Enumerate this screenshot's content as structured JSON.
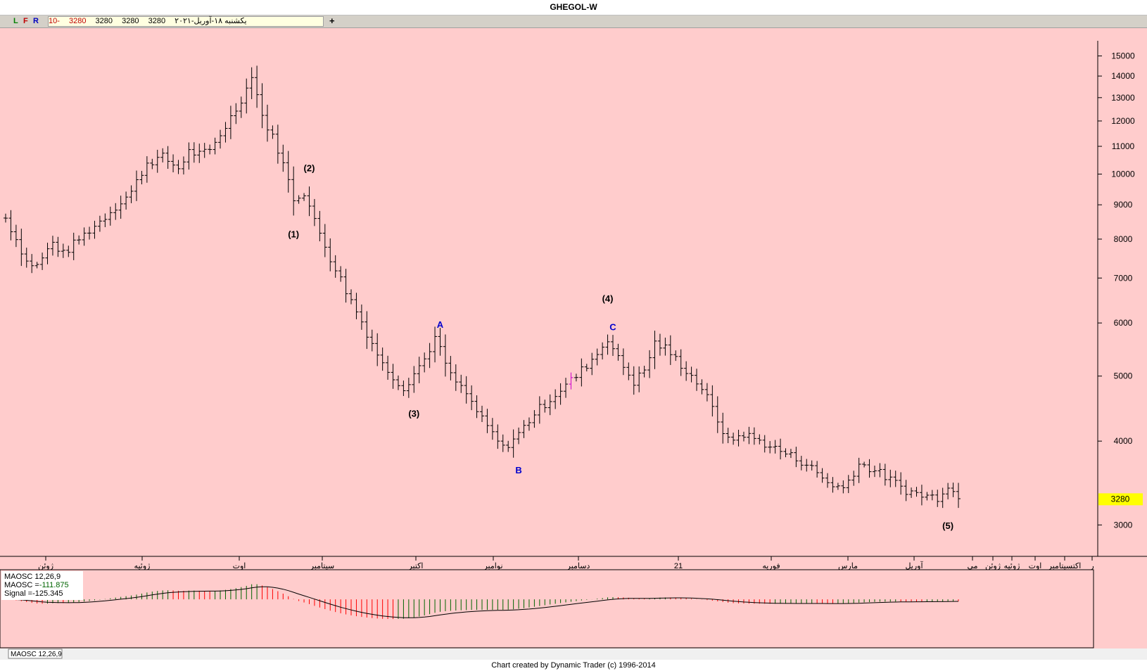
{
  "window": {
    "title": "GHEGOL-W"
  },
  "toolbar": {
    "letters": [
      "L",
      "F",
      "R"
    ],
    "letter_colors": [
      "#008000",
      "#c00000",
      "#0000c0"
    ],
    "date": "یکشنبه ۱۸-آوریل-۲۰۲۱",
    "open": "3280",
    "high": "3280",
    "low": "3280",
    "close": "3280",
    "change": "-10",
    "plus": "+"
  },
  "colors": {
    "background": "#ffcccc",
    "bar": "#000000",
    "histogram_up": "#006400",
    "histogram_down": "#ff0000",
    "last_price_tag": "#ffff00",
    "wave_label": "#000000",
    "abc_label": "#0000cc"
  },
  "chart_data": [
    {
      "type": "bar",
      "title": "",
      "scale": "log",
      "ylim": [
        2700,
        15800
      ],
      "y_ticks": [
        3000,
        4000,
        5000,
        6000,
        7000,
        8000,
        9000,
        10000,
        11000,
        12000,
        13000,
        14000,
        15000
      ],
      "last_price": "3280",
      "x_labels": [
        "ژوئن",
        "ژوئیه",
        "اوت",
        "سپتامبر",
        "اکتبر",
        "نوامبر",
        "دسامبر",
        "21",
        "فوریه",
        "مارس",
        "آوریل",
        "می",
        "ژوئن",
        "ژوئیه",
        "اوت",
        "اکتسپتامبر",
        "ر"
      ],
      "waypoints": [
        [
          0,
          8600
        ],
        [
          4,
          7400
        ],
        [
          6,
          7300
        ],
        [
          9,
          7900
        ],
        [
          11,
          7600
        ],
        [
          14,
          8000
        ],
        [
          18,
          8500
        ],
        [
          24,
          9400
        ],
        [
          27,
          10400
        ],
        [
          30,
          10600
        ],
        [
          33,
          10200
        ],
        [
          35,
          10800
        ],
        [
          37,
          10700
        ],
        [
          39,
          10800
        ],
        [
          42,
          11800
        ],
        [
          44,
          12500
        ],
        [
          46,
          13400
        ],
        [
          47,
          14100
        ],
        [
          49,
          12200
        ],
        [
          52,
          10900
        ],
        [
          55,
          9200
        ],
        [
          57,
          9400
        ],
        [
          59,
          8500
        ],
        [
          62,
          7500
        ],
        [
          65,
          6700
        ],
        [
          69,
          5800
        ],
        [
          72,
          5200
        ],
        [
          76,
          4800
        ],
        [
          80,
          5300
        ],
        [
          82,
          5700
        ],
        [
          85,
          5000
        ],
        [
          88,
          4700
        ],
        [
          91,
          4300
        ],
        [
          95,
          3900
        ],
        [
          98,
          4100
        ],
        [
          101,
          4400
        ],
        [
          105,
          4700
        ],
        [
          109,
          5000
        ],
        [
          113,
          5400
        ],
        [
          115,
          5700
        ],
        [
          117,
          5300
        ],
        [
          120,
          4900
        ],
        [
          122,
          5100
        ],
        [
          124,
          5600
        ],
        [
          126,
          5500
        ],
        [
          128,
          5300
        ],
        [
          130,
          5100
        ],
        [
          133,
          4800
        ],
        [
          136,
          4300
        ],
        [
          138,
          4000
        ],
        [
          141,
          4100
        ],
        [
          144,
          4000
        ],
        [
          147,
          3900
        ],
        [
          150,
          3800
        ],
        [
          153,
          3700
        ],
        [
          157,
          3470
        ],
        [
          160,
          3400
        ],
        [
          163,
          3700
        ],
        [
          166,
          3620
        ],
        [
          169,
          3500
        ],
        [
          172,
          3380
        ],
        [
          175,
          3320
        ],
        [
          178,
          3300
        ],
        [
          180,
          3450
        ],
        [
          182,
          3280
        ]
      ],
      "magenta_bar_index": 108,
      "annotations": [
        {
          "text": "(1)",
          "index": 55,
          "price": 8050,
          "color": "#000000"
        },
        {
          "text": "(2)",
          "index": 58,
          "price": 10100,
          "color": "#000000"
        },
        {
          "text": "(3)",
          "index": 78,
          "price": 4350,
          "color": "#000000"
        },
        {
          "text": "(4)",
          "index": 115,
          "price": 6450,
          "color": "#000000"
        },
        {
          "text": "(5)",
          "index": 180,
          "price": 2960,
          "color": "#000000"
        },
        {
          "text": "A",
          "index": 83,
          "price": 5900,
          "color": "#0000cc"
        },
        {
          "text": "B",
          "index": 98,
          "price": 3580,
          "color": "#0000cc"
        },
        {
          "text": "C",
          "index": 116,
          "price": 5850,
          "color": "#0000cc"
        }
      ]
    },
    {
      "type": "histogram",
      "title": "MAOSC 12,26,9",
      "legend": {
        "title": "MAOSC 12,26,9",
        "maosc_label": "MAOSC =",
        "maosc_value": "-111.875",
        "signal_label": "Signal =",
        "signal_value": "-125.345"
      },
      "tab_label": "MAOSC 12,26,9",
      "ylim": [
        -3200,
        1900
      ]
    }
  ],
  "footer": {
    "credit": "Chart created by Dynamic Trader  (c)  1996-2014"
  }
}
